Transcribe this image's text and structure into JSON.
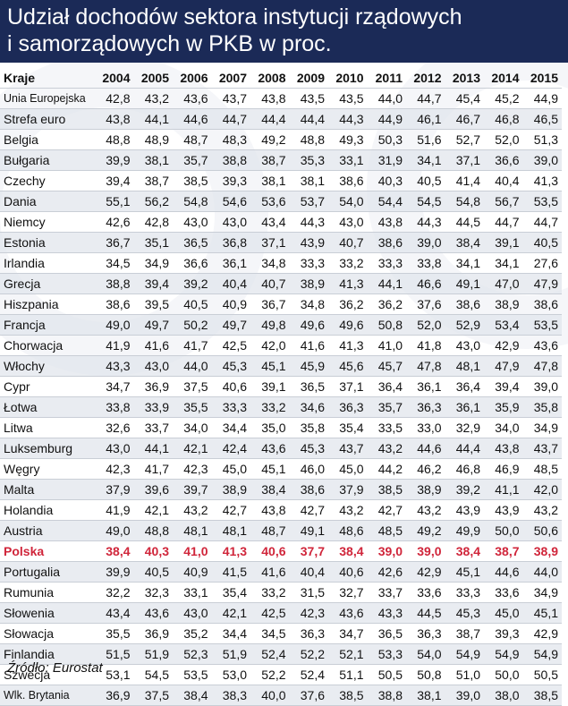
{
  "title": "Udział dochodów sektora instytucji rządowych\ni samorządowych w PKB w proc.",
  "source": "Źródło: Eurostat",
  "chart_data": {
    "type": "table",
    "title": "Udział dochodów sektora instytucji rządowych i samorządowych w PKB w proc.",
    "columns": [
      "Kraje",
      "2004",
      "2005",
      "2006",
      "2007",
      "2008",
      "2009",
      "2010",
      "2011",
      "2012",
      "2013",
      "2014",
      "2015"
    ],
    "highlight_color": "#d0253a",
    "rows": [
      {
        "country": "Unia Europejska",
        "values": [
          "42,8",
          "43,2",
          "43,6",
          "43,7",
          "43,8",
          "43,5",
          "43,5",
          "44,0",
          "44,7",
          "45,4",
          "45,2",
          "44,9"
        ]
      },
      {
        "country": "Strefa euro",
        "values": [
          "43,8",
          "44,1",
          "44,6",
          "44,7",
          "44,4",
          "44,4",
          "44,3",
          "44,9",
          "46,1",
          "46,7",
          "46,8",
          "46,5"
        ]
      },
      {
        "country": "Belgia",
        "values": [
          "48,8",
          "48,9",
          "48,7",
          "48,3",
          "49,2",
          "48,8",
          "49,3",
          "50,3",
          "51,6",
          "52,7",
          "52,0",
          "51,3"
        ]
      },
      {
        "country": "Bułgaria",
        "values": [
          "39,9",
          "38,1",
          "35,7",
          "38,8",
          "38,7",
          "35,3",
          "33,1",
          "31,9",
          "34,1",
          "37,1",
          "36,6",
          "39,0"
        ]
      },
      {
        "country": "Czechy",
        "values": [
          "39,4",
          "38,7",
          "38,5",
          "39,3",
          "38,1",
          "38,1",
          "38,6",
          "40,3",
          "40,5",
          "41,4",
          "40,4",
          "41,3"
        ]
      },
      {
        "country": "Dania",
        "values": [
          "55,1",
          "56,2",
          "54,8",
          "54,6",
          "53,6",
          "53,7",
          "54,0",
          "54,4",
          "54,5",
          "54,8",
          "56,7",
          "53,5"
        ]
      },
      {
        "country": "Niemcy",
        "values": [
          "42,6",
          "42,8",
          "43,0",
          "43,0",
          "43,4",
          "44,3",
          "43,0",
          "43,8",
          "44,3",
          "44,5",
          "44,7",
          "44,7"
        ]
      },
      {
        "country": "Estonia",
        "values": [
          "36,7",
          "35,1",
          "36,5",
          "36,8",
          "37,1",
          "43,9",
          "40,7",
          "38,6",
          "39,0",
          "38,4",
          "39,1",
          "40,5"
        ]
      },
      {
        "country": "Irlandia",
        "values": [
          "34,5",
          "34,9",
          "36,6",
          "36,1",
          "34,8",
          "33,3",
          "33,2",
          "33,3",
          "33,8",
          "34,1",
          "34,1",
          "27,6"
        ]
      },
      {
        "country": "Grecja",
        "values": [
          "38,8",
          "39,4",
          "39,2",
          "40,4",
          "40,7",
          "38,9",
          "41,3",
          "44,1",
          "46,6",
          "49,1",
          "47,0",
          "47,9"
        ]
      },
      {
        "country": "Hiszpania",
        "values": [
          "38,6",
          "39,5",
          "40,5",
          "40,9",
          "36,7",
          "34,8",
          "36,2",
          "36,2",
          "37,6",
          "38,6",
          "38,9",
          "38,6"
        ]
      },
      {
        "country": "Francja",
        "values": [
          "49,0",
          "49,7",
          "50,2",
          "49,7",
          "49,8",
          "49,6",
          "49,6",
          "50,8",
          "52,0",
          "52,9",
          "53,4",
          "53,5"
        ]
      },
      {
        "country": "Chorwacja",
        "values": [
          "41,9",
          "41,6",
          "41,7",
          "42,5",
          "42,0",
          "41,6",
          "41,3",
          "41,0",
          "41,8",
          "43,0",
          "42,9",
          "43,6"
        ]
      },
      {
        "country": "Włochy",
        "values": [
          "43,3",
          "43,0",
          "44,0",
          "45,3",
          "45,1",
          "45,9",
          "45,6",
          "45,7",
          "47,8",
          "48,1",
          "47,9",
          "47,8"
        ]
      },
      {
        "country": "Cypr",
        "values": [
          "34,7",
          "36,9",
          "37,5",
          "40,6",
          "39,1",
          "36,5",
          "37,1",
          "36,4",
          "36,1",
          "36,4",
          "39,4",
          "39,0"
        ]
      },
      {
        "country": "Łotwa",
        "values": [
          "33,8",
          "33,9",
          "35,5",
          "33,3",
          "33,2",
          "34,6",
          "36,3",
          "35,7",
          "36,3",
          "36,1",
          "35,9",
          "35,8"
        ]
      },
      {
        "country": "Litwa",
        "values": [
          "32,6",
          "33,7",
          "34,0",
          "34,4",
          "35,0",
          "35,8",
          "35,4",
          "33,5",
          "33,0",
          "32,9",
          "34,0",
          "34,9"
        ]
      },
      {
        "country": "Luksemburg",
        "values": [
          "43,0",
          "44,1",
          "42,1",
          "42,4",
          "43,6",
          "45,3",
          "43,7",
          "43,2",
          "44,6",
          "44,4",
          "43,8",
          "43,7"
        ]
      },
      {
        "country": "Węgry",
        "values": [
          "42,3",
          "41,7",
          "42,3",
          "45,0",
          "45,1",
          "46,0",
          "45,0",
          "44,2",
          "46,2",
          "46,8",
          "46,9",
          "48,5"
        ]
      },
      {
        "country": "Malta",
        "values": [
          "37,9",
          "39,6",
          "39,7",
          "38,9",
          "38,4",
          "38,6",
          "37,9",
          "38,5",
          "38,9",
          "39,2",
          "41,1",
          "42,0"
        ]
      },
      {
        "country": "Holandia",
        "values": [
          "41,9",
          "42,1",
          "43,2",
          "42,7",
          "43,8",
          "42,7",
          "43,2",
          "42,7",
          "43,2",
          "43,9",
          "43,9",
          "43,2"
        ]
      },
      {
        "country": "Austria",
        "values": [
          "49,0",
          "48,8",
          "48,1",
          "48,1",
          "48,7",
          "49,1",
          "48,6",
          "48,5",
          "49,2",
          "49,9",
          "50,0",
          "50,6"
        ]
      },
      {
        "country": "Polska",
        "highlight": true,
        "values": [
          "38,4",
          "40,3",
          "41,0",
          "41,3",
          "40,6",
          "37,7",
          "38,4",
          "39,0",
          "39,0",
          "38,4",
          "38,7",
          "38,9"
        ]
      },
      {
        "country": "Portugalia",
        "values": [
          "39,9",
          "40,5",
          "40,9",
          "41,5",
          "41,6",
          "40,4",
          "40,6",
          "42,6",
          "42,9",
          "45,1",
          "44,6",
          "44,0"
        ]
      },
      {
        "country": "Rumunia",
        "values": [
          "32,2",
          "32,3",
          "33,1",
          "35,4",
          "33,2",
          "31,5",
          "32,7",
          "33,7",
          "33,6",
          "33,3",
          "33,6",
          "34,9"
        ]
      },
      {
        "country": "Słowenia",
        "values": [
          "43,4",
          "43,6",
          "43,0",
          "42,1",
          "42,5",
          "42,3",
          "43,6",
          "43,3",
          "44,5",
          "45,3",
          "45,0",
          "45,1"
        ]
      },
      {
        "country": "Słowacja",
        "values": [
          "35,5",
          "36,9",
          "35,2",
          "34,4",
          "34,5",
          "36,3",
          "34,7",
          "36,5",
          "36,3",
          "38,7",
          "39,3",
          "42,9"
        ]
      },
      {
        "country": "Finlandia",
        "values": [
          "51,5",
          "51,9",
          "52,3",
          "51,9",
          "52,4",
          "52,2",
          "52,1",
          "53,3",
          "54,0",
          "54,9",
          "54,9",
          "54,9"
        ]
      },
      {
        "country": "Szwecja",
        "values": [
          "53,1",
          "54,5",
          "53,5",
          "53,0",
          "52,2",
          "52,4",
          "51,1",
          "50,5",
          "50,8",
          "51,0",
          "50,0",
          "50,5"
        ]
      },
      {
        "country": "Wlk. Brytania",
        "values": [
          "36,9",
          "37,5",
          "38,4",
          "38,3",
          "40,0",
          "37,6",
          "38,5",
          "38,8",
          "38,1",
          "39,0",
          "38,0",
          "38,5"
        ]
      }
    ]
  }
}
